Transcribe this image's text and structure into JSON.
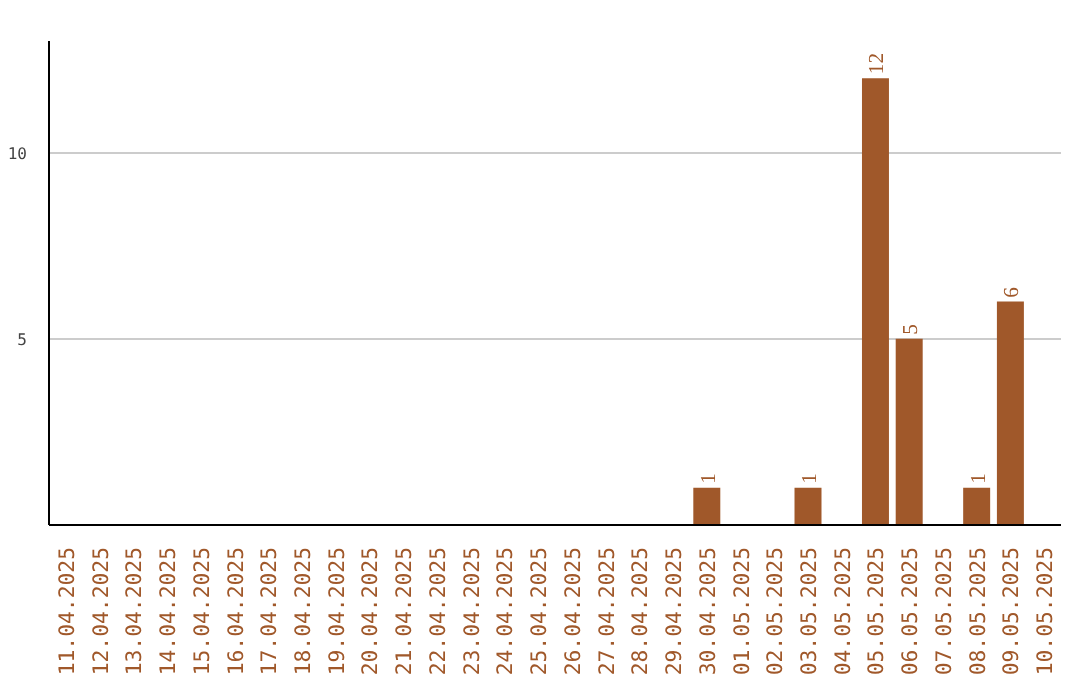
{
  "chart_data": {
    "type": "bar",
    "categories": [
      "11.04.2025",
      "12.04.2025",
      "13.04.2025",
      "14.04.2025",
      "15.04.2025",
      "16.04.2025",
      "17.04.2025",
      "18.04.2025",
      "19.04.2025",
      "20.04.2025",
      "21.04.2025",
      "22.04.2025",
      "23.04.2025",
      "24.04.2025",
      "25.04.2025",
      "26.04.2025",
      "27.04.2025",
      "28.04.2025",
      "29.04.2025",
      "30.04.2025",
      "01.05.2025",
      "02.05.2025",
      "03.05.2025",
      "04.05.2025",
      "05.05.2025",
      "06.05.2025",
      "07.05.2025",
      "08.05.2025",
      "09.05.2025",
      "10.05.2025"
    ],
    "values": [
      0,
      0,
      0,
      0,
      0,
      0,
      0,
      0,
      0,
      0,
      0,
      0,
      0,
      0,
      0,
      0,
      0,
      0,
      0,
      1,
      0,
      0,
      1,
      0,
      12,
      5,
      0,
      1,
      6,
      0
    ],
    "value_labels": [
      null,
      null,
      null,
      null,
      null,
      null,
      null,
      null,
      null,
      null,
      null,
      null,
      null,
      null,
      null,
      null,
      null,
      null,
      null,
      "1",
      null,
      null,
      "1",
      null,
      "12",
      "5",
      null,
      "1",
      "6",
      null
    ],
    "color": "#a0582a",
    "ylim": [
      0,
      13
    ],
    "yticks": [
      5,
      10
    ],
    "grid": "y"
  }
}
